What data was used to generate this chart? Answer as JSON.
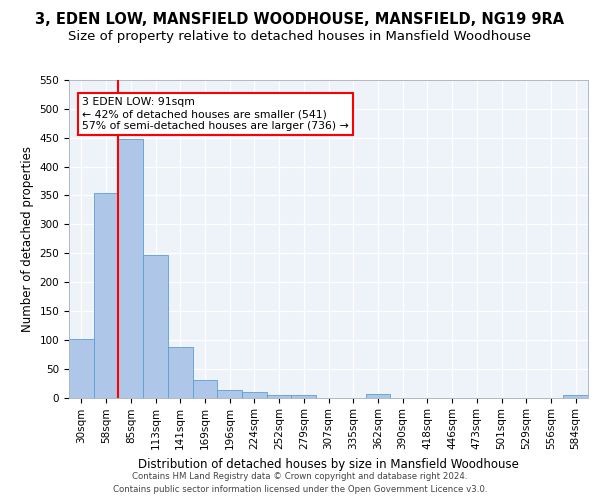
{
  "title_line1": "3, EDEN LOW, MANSFIELD WOODHOUSE, MANSFIELD, NG19 9RA",
  "title_line2": "Size of property relative to detached houses in Mansfield Woodhouse",
  "xlabel": "Distribution of detached houses by size in Mansfield Woodhouse",
  "ylabel": "Number of detached properties",
  "footer_line1": "Contains HM Land Registry data © Crown copyright and database right 2024.",
  "footer_line2": "Contains public sector information licensed under the Open Government Licence v3.0.",
  "bin_labels": [
    "30sqm",
    "58sqm",
    "85sqm",
    "113sqm",
    "141sqm",
    "169sqm",
    "196sqm",
    "224sqm",
    "252sqm",
    "279sqm",
    "307sqm",
    "335sqm",
    "362sqm",
    "390sqm",
    "418sqm",
    "446sqm",
    "473sqm",
    "501sqm",
    "529sqm",
    "556sqm",
    "584sqm"
  ],
  "bar_values": [
    102,
    355,
    447,
    246,
    88,
    30,
    13,
    9,
    5,
    4,
    0,
    0,
    6,
    0,
    0,
    0,
    0,
    0,
    0,
    0,
    5
  ],
  "bar_color": "#aec6e8",
  "bar_edge_color": "#5a9fd4",
  "annotation_text": "3 EDEN LOW: 91sqm\n← 42% of detached houses are smaller (541)\n57% of semi-detached houses are larger (736) →",
  "vline_x": 1.5,
  "ylim": [
    0,
    550
  ],
  "yticks": [
    0,
    50,
    100,
    150,
    200,
    250,
    300,
    350,
    400,
    450,
    500,
    550
  ],
  "background_color": "#eef2f9",
  "grid_color": "#ffffff",
  "title_fontsize": 10.5,
  "subtitle_fontsize": 9.5,
  "ylabel_fontsize": 8.5,
  "xlabel_fontsize": 8.5,
  "tick_fontsize": 7.5,
  "footer_fontsize": 6.2,
  "annotation_fontsize": 7.8,
  "bar_width": 1.0
}
